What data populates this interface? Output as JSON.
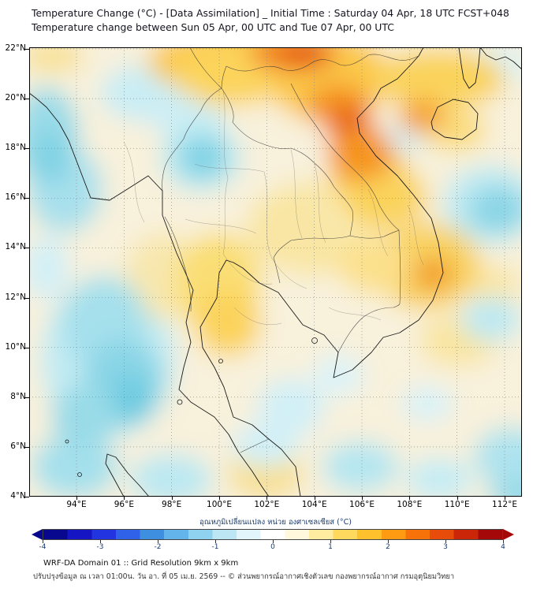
{
  "header": {
    "line1": "Temperature Change (°C) - [Data Assimilation] _ Initial Time : Saturday 04 Apr, 18 UTC FCST+048",
    "line2": "Temperature change between Sun 05 Apr, 00 UTC and Tue 07 Apr, 00 UTC"
  },
  "map": {
    "lat_ticks": [
      "22°N",
      "20°N",
      "18°N",
      "16°N",
      "14°N",
      "12°N",
      "10°N",
      "8°N",
      "6°N",
      "4°N"
    ],
    "lon_ticks": [
      "94°E",
      "96°E",
      "98°E",
      "100°E",
      "102°E",
      "104°E",
      "106°E",
      "108°E",
      "110°E",
      "112°E"
    ]
  },
  "colorbar": {
    "label": "อุณหภูมิเปลี่ยนแปลง หน่วย องศาเซลเซียส (°C)",
    "tick_labels": [
      "-4",
      "-3",
      "-2",
      "-1",
      "0",
      "1",
      "2",
      "3",
      "4"
    ],
    "min": -4,
    "max": 4,
    "stops": [
      "#08088f",
      "#1515c4",
      "#2233e0",
      "#2f62e8",
      "#3f8fe0",
      "#62b4ea",
      "#8ed2ef",
      "#bce6f4",
      "#e2f5fa",
      "#ffffff",
      "#fff8dc",
      "#ffeca0",
      "#ffd95e",
      "#ffc02e",
      "#ff9b12",
      "#f7730a",
      "#e84c0a",
      "#cc2608",
      "#a50808"
    ]
  },
  "footer": {
    "line1": "WRF-DA Domain 01 :: Grid Resolution 9km x 9km",
    "line2": "ปรับปรุงข้อมูล ณ เวลา 01:00น. วัน อา. ที่ 05 เม.ย. 2569 -- © ส่วนพยากรณ์อากาศเชิงตัวเลข กองพยากรณ์อากาศ กรมอุตุนิยมวิทยา"
  }
}
